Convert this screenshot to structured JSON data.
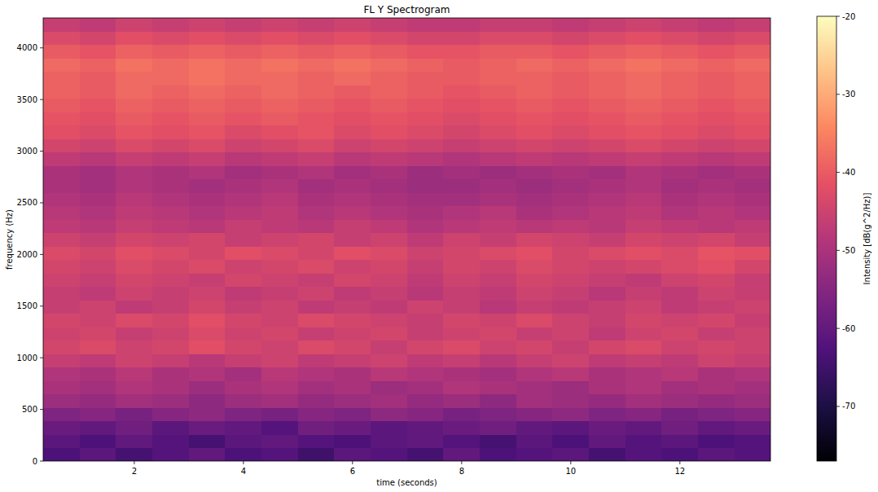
{
  "chart_data": {
    "type": "heatmap",
    "title": "FL Y Spectrogram",
    "x_label": "time (seconds)",
    "y_label": "frequency (Hz)",
    "colorbar_label": "Intensity [dB(g^2/Hz)]",
    "xlim": [
      0.33,
      13.66
    ],
    "ylim": [
      0,
      4290
    ],
    "xticks": [
      2,
      4,
      6,
      8,
      10,
      12
    ],
    "yticks": [
      0,
      500,
      1000,
      1500,
      2000,
      2500,
      3000,
      3500,
      4000
    ],
    "clim": [
      -77,
      -20
    ],
    "cticks": [
      -70,
      -60,
      -50,
      -40,
      -30,
      -20
    ],
    "xbins": [
      0.33,
      1.0,
      1.66,
      2.33,
      3.0,
      3.66,
      4.33,
      5.0,
      5.66,
      6.33,
      7.0,
      7.66,
      8.33,
      9.0,
      9.66,
      10.33,
      11.0,
      11.66,
      12.33,
      13.0,
      13.66
    ],
    "ybins": [
      0,
      130,
      260,
      390,
      520,
      650,
      780,
      910,
      1040,
      1170,
      1300,
      1430,
      1560,
      1690,
      1820,
      1950,
      2080,
      2210,
      2340,
      2470,
      2600,
      2730,
      2860,
      2990,
      3120,
      3250,
      3380,
      3510,
      3640,
      3770,
      3900,
      4030,
      4160,
      4290
    ],
    "cells": [
      [
        -63,
        -61,
        -64,
        -62,
        -60,
        -63,
        -62,
        -65,
        -61,
        -62,
        -64,
        -60,
        -63,
        -62,
        -61,
        -64,
        -62,
        -63,
        -61,
        -62
      ],
      [
        -61,
        -63,
        -60,
        -62,
        -64,
        -61,
        -60,
        -62,
        -63,
        -61,
        -60,
        -62,
        -64,
        -61,
        -63,
        -60,
        -62,
        -61,
        -63,
        -62
      ],
      [
        -59,
        -60,
        -58,
        -61,
        -59,
        -60,
        -62,
        -58,
        -59,
        -61,
        -60,
        -59,
        -58,
        -60,
        -61,
        -59,
        -60,
        -58,
        -60,
        -59
      ],
      [
        -56,
        -55,
        -57,
        -55,
        -54,
        -56,
        -57,
        -55,
        -56,
        -54,
        -55,
        -57,
        -56,
        -55,
        -54,
        -56,
        -55,
        -57,
        -56,
        -55
      ],
      [
        -52,
        -53,
        -51,
        -52,
        -54,
        -52,
        -51,
        -53,
        -52,
        -51,
        -53,
        -52,
        -54,
        -51,
        -52,
        -53,
        -51,
        -52,
        -53,
        -52
      ],
      [
        -50,
        -51,
        -49,
        -50,
        -52,
        -50,
        -49,
        -51,
        -50,
        -52,
        -51,
        -49,
        -50,
        -51,
        -52,
        -50,
        -49,
        -51,
        -50,
        -51
      ],
      [
        -49,
        -50,
        -48,
        -50,
        -49,
        -51,
        -48,
        -49,
        -50,
        -48,
        -49,
        -50,
        -51,
        -49,
        -48,
        -50,
        -49,
        -48,
        -50,
        -49
      ],
      [
        -46,
        -47,
        -45,
        -46,
        -48,
        -46,
        -45,
        -47,
        -46,
        -45,
        -47,
        -46,
        -48,
        -46,
        -45,
        -47,
        -46,
        -47,
        -45,
        -46
      ],
      [
        -44,
        -43,
        -45,
        -44,
        -42,
        -44,
        -45,
        -43,
        -44,
        -46,
        -44,
        -43,
        -45,
        -44,
        -46,
        -44,
        -43,
        -45,
        -44,
        -45
      ],
      [
        -45,
        -44,
        -46,
        -45,
        -43,
        -45,
        -44,
        -46,
        -45,
        -44,
        -46,
        -45,
        -44,
        -46,
        -45,
        -47,
        -45,
        -44,
        -46,
        -45
      ],
      [
        -44,
        -45,
        -43,
        -44,
        -42,
        -44,
        -45,
        -43,
        -44,
        -45,
        -46,
        -44,
        -45,
        -43,
        -45,
        -46,
        -44,
        -45,
        -44,
        -46
      ],
      [
        -46,
        -45,
        -47,
        -46,
        -44,
        -46,
        -45,
        -47,
        -46,
        -47,
        -45,
        -46,
        -48,
        -46,
        -47,
        -46,
        -45,
        -47,
        -46,
        -45
      ],
      [
        -46,
        -47,
        -45,
        -46,
        -45,
        -47,
        -46,
        -45,
        -47,
        -46,
        -48,
        -46,
        -47,
        -45,
        -46,
        -48,
        -46,
        -47,
        -45,
        -46
      ],
      [
        -45,
        -46,
        -44,
        -45,
        -46,
        -44,
        -45,
        -46,
        -44,
        -45,
        -47,
        -45,
        -46,
        -44,
        -45,
        -46,
        -47,
        -45,
        -44,
        -46
      ],
      [
        -44,
        -45,
        -43,
        -44,
        -43,
        -45,
        -44,
        -43,
        -45,
        -44,
        -46,
        -44,
        -45,
        -43,
        -44,
        -45,
        -44,
        -43,
        -42,
        -44
      ],
      [
        -43,
        -44,
        -42,
        -43,
        -44,
        -42,
        -43,
        -44,
        -42,
        -43,
        -45,
        -44,
        -43,
        -42,
        -44,
        -43,
        -42,
        -43,
        -41,
        -42
      ],
      [
        -45,
        -46,
        -44,
        -45,
        -44,
        -46,
        -45,
        -44,
        -46,
        -45,
        -47,
        -45,
        -46,
        -44,
        -45,
        -46,
        -44,
        -45,
        -44,
        -46
      ],
      [
        -47,
        -48,
        -46,
        -47,
        -48,
        -46,
        -47,
        -48,
        -46,
        -47,
        -49,
        -48,
        -47,
        -48,
        -47,
        -48,
        -46,
        -47,
        -48,
        -47
      ],
      [
        -48,
        -49,
        -47,
        -48,
        -49,
        -48,
        -47,
        -49,
        -48,
        -49,
        -50,
        -49,
        -48,
        -50,
        -49,
        -48,
        -47,
        -49,
        -48,
        -49
      ],
      [
        -49,
        -50,
        -48,
        -49,
        -50,
        -49,
        -48,
        -50,
        -49,
        -50,
        -51,
        -51,
        -50,
        -51,
        -50,
        -49,
        -48,
        -50,
        -49,
        -50
      ],
      [
        -50,
        -51,
        -49,
        -50,
        -51,
        -50,
        -49,
        -51,
        -50,
        -51,
        -52,
        -52,
        -51,
        -52,
        -51,
        -50,
        -49,
        -51,
        -50,
        -51
      ],
      [
        -50,
        -51,
        -49,
        -50,
        -49,
        -51,
        -50,
        -49,
        -51,
        -50,
        -52,
        -51,
        -52,
        -51,
        -50,
        -51,
        -49,
        -50,
        -51,
        -50
      ],
      [
        -47,
        -48,
        -46,
        -47,
        -46,
        -48,
        -47,
        -46,
        -48,
        -47,
        -48,
        -49,
        -48,
        -47,
        -48,
        -47,
        -46,
        -47,
        -48,
        -47
      ],
      [
        -44,
        -45,
        -43,
        -44,
        -43,
        -45,
        -44,
        -43,
        -45,
        -44,
        -45,
        -46,
        -45,
        -44,
        -45,
        -44,
        -43,
        -44,
        -45,
        -44
      ],
      [
        -42,
        -43,
        -41,
        -42,
        -41,
        -43,
        -42,
        -41,
        -43,
        -42,
        -43,
        -44,
        -43,
        -42,
        -43,
        -42,
        -41,
        -42,
        -43,
        -42
      ],
      [
        -41,
        -42,
        -40,
        -41,
        -40,
        -41,
        -40,
        -41,
        -42,
        -41,
        -42,
        -43,
        -42,
        -41,
        -42,
        -41,
        -40,
        -41,
        -42,
        -41
      ],
      [
        -40,
        -41,
        -39,
        -40,
        -39,
        -40,
        -39,
        -40,
        -41,
        -40,
        -41,
        -42,
        -41,
        -40,
        -41,
        -40,
        -39,
        -40,
        -41,
        -40
      ],
      [
        -39,
        -40,
        -38,
        -39,
        -38,
        -39,
        -38,
        -39,
        -40,
        -39,
        -40,
        -41,
        -40,
        -39,
        -40,
        -39,
        -38,
        -39,
        -40,
        -39
      ],
      [
        -39,
        -40,
        -38,
        -38,
        -37,
        -38,
        -38,
        -39,
        -38,
        -39,
        -40,
        -40,
        -39,
        -39,
        -40,
        -39,
        -38,
        -39,
        -40,
        -39
      ],
      [
        -38,
        -39,
        -37,
        -38,
        -37,
        -38,
        -37,
        -38,
        -37,
        -38,
        -39,
        -40,
        -39,
        -38,
        -39,
        -38,
        -37,
        -38,
        -39,
        -38
      ],
      [
        -40,
        -41,
        -39,
        -40,
        -39,
        -40,
        -39,
        -40,
        -39,
        -40,
        -41,
        -41,
        -40,
        -40,
        -41,
        -40,
        -39,
        -40,
        -41,
        -40
      ],
      [
        -43,
        -44,
        -42,
        -43,
        -42,
        -43,
        -42,
        -43,
        -42,
        -43,
        -44,
        -44,
        -43,
        -43,
        -44,
        -43,
        -42,
        -43,
        -44,
        -43
      ],
      [
        -46,
        -47,
        -45,
        -46,
        -45,
        -46,
        -45,
        -46,
        -45,
        -46,
        -47,
        -47,
        -46,
        -46,
        -47,
        -46,
        -45,
        -46,
        -47,
        -46
      ]
    ]
  }
}
